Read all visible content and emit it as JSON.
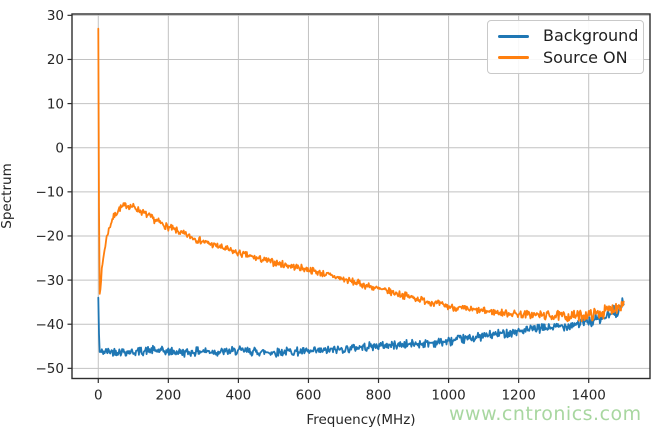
{
  "chart_data": {
    "type": "line",
    "title": "",
    "xlabel": "Frequency(MHz)",
    "ylabel": "Spectrum",
    "xlim": [
      -75,
      1575
    ],
    "ylim": [
      -52.3,
      30.3
    ],
    "grid": true,
    "legend_position": "upper right",
    "step_mhz": 2,
    "xticks": {
      "values": [
        0,
        200,
        400,
        600,
        800,
        1000,
        1200,
        1400
      ],
      "labels": [
        "0",
        "200",
        "400",
        "600",
        "800",
        "1000",
        "1200",
        "1400"
      ]
    },
    "yticks": {
      "values": [
        30,
        20,
        10,
        0,
        -10,
        -20,
        -30,
        -40,
        -50
      ],
      "labels": [
        "30",
        "20",
        "10",
        "0",
        "−10",
        "−20",
        "−30",
        "−40",
        "−50"
      ]
    },
    "series": [
      {
        "name": "Background",
        "color": "#1f77b4",
        "noise_amp": 0.62,
        "noise_seed": 42,
        "noise_from": 6,
        "noise_ramp_start": 1300,
        "noise_ramp_mult": 1.6,
        "anchors": [
          [
            0,
            -34.0
          ],
          [
            3,
            -46.3
          ],
          [
            50,
            -46.1
          ],
          [
            100,
            -46.3
          ],
          [
            150,
            -45.9
          ],
          [
            200,
            -46.2
          ],
          [
            250,
            -46.4
          ],
          [
            300,
            -46.1
          ],
          [
            350,
            -46.3
          ],
          [
            400,
            -46.0
          ],
          [
            450,
            -46.2
          ],
          [
            500,
            -46.4
          ],
          [
            550,
            -46.1
          ],
          [
            600,
            -46.3
          ],
          [
            650,
            -46.0
          ],
          [
            700,
            -45.6
          ],
          [
            750,
            -45.2
          ],
          [
            800,
            -44.9
          ],
          [
            850,
            -44.7
          ],
          [
            900,
            -44.5
          ],
          [
            950,
            -44.2
          ],
          [
            1000,
            -43.9
          ],
          [
            1050,
            -43.3
          ],
          [
            1100,
            -42.7
          ],
          [
            1150,
            -42.1
          ],
          [
            1200,
            -41.6
          ],
          [
            1250,
            -41.1
          ],
          [
            1300,
            -40.7
          ],
          [
            1350,
            -40.1
          ],
          [
            1400,
            -39.4
          ],
          [
            1440,
            -38.6
          ],
          [
            1470,
            -37.5
          ],
          [
            1490,
            -36.3
          ],
          [
            1500,
            -35.4
          ]
        ]
      },
      {
        "name": "Source ON",
        "color": "#ff7f0e",
        "noise_amp": 0.5,
        "noise_seed": 7,
        "noise_from": 6,
        "noise_ramp_start": 1150,
        "noise_ramp_mult": 1.9,
        "anchors": [
          [
            0,
            27.0
          ],
          [
            3,
            -34.0
          ],
          [
            8,
            -29.5
          ],
          [
            15,
            -24.5
          ],
          [
            25,
            -19.8
          ],
          [
            40,
            -16.2
          ],
          [
            60,
            -13.8
          ],
          [
            80,
            -13.0
          ],
          [
            100,
            -13.4
          ],
          [
            130,
            -14.8
          ],
          [
            160,
            -16.3
          ],
          [
            200,
            -18.0
          ],
          [
            250,
            -19.8
          ],
          [
            300,
            -21.3
          ],
          [
            350,
            -22.6
          ],
          [
            400,
            -23.9
          ],
          [
            450,
            -25.0
          ],
          [
            500,
            -26.0
          ],
          [
            550,
            -26.8
          ],
          [
            600,
            -27.6
          ],
          [
            650,
            -28.7
          ],
          [
            700,
            -29.8
          ],
          [
            750,
            -30.9
          ],
          [
            800,
            -32.0
          ],
          [
            850,
            -33.0
          ],
          [
            900,
            -34.0
          ],
          [
            950,
            -35.0
          ],
          [
            1000,
            -36.0
          ],
          [
            1050,
            -36.6
          ],
          [
            1100,
            -37.0
          ],
          [
            1150,
            -37.4
          ],
          [
            1200,
            -37.7
          ],
          [
            1250,
            -37.9
          ],
          [
            1300,
            -38.1
          ],
          [
            1350,
            -38.2
          ],
          [
            1400,
            -37.9
          ],
          [
            1440,
            -37.3
          ],
          [
            1470,
            -36.4
          ],
          [
            1490,
            -35.6
          ],
          [
            1500,
            -35.2
          ]
        ]
      }
    ]
  },
  "legend": {
    "entries": [
      {
        "label": "Background",
        "color": "#1f77b4"
      },
      {
        "label": "Source ON",
        "color": "#ff7f0e"
      }
    ]
  },
  "watermark": {
    "text": "www.cntronics.com",
    "color": "#a8d7a0"
  },
  "colors": {
    "background": "#ffffff",
    "grid": "#c2c2c2",
    "spine": "#2e2e2e",
    "tick_text": "#262626"
  }
}
